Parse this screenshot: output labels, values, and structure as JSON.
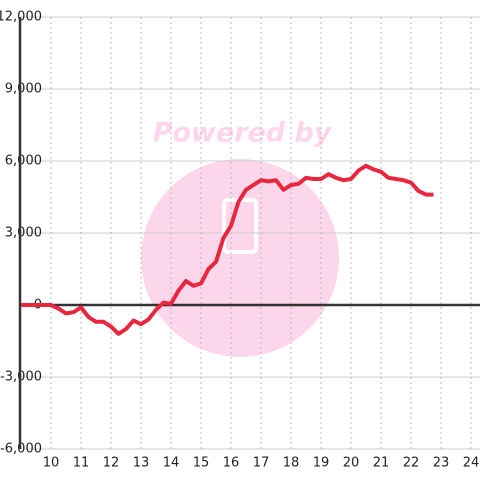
{
  "chart_data": {
    "type": "line",
    "watermark": "Powered by",
    "x": [
      9,
      10,
      10.25,
      10.5,
      10.75,
      11,
      11.25,
      11.5,
      11.75,
      12,
      12.25,
      12.5,
      12.75,
      13,
      13.25,
      13.5,
      13.75,
      14,
      14.25,
      14.5,
      14.75,
      15,
      15.25,
      15.5,
      15.75,
      16,
      16.25,
      16.5,
      16.75,
      17,
      17.25,
      17.5,
      17.75,
      18,
      18.25,
      18.5,
      18.75,
      19,
      19.25,
      19.5,
      19.75,
      20,
      20.25,
      20.5,
      20.75,
      21,
      21.25,
      21.5,
      21.75,
      22,
      22.25,
      22.5,
      22.75
    ],
    "series": [
      {
        "color": "#e8273f",
        "values": [
          0,
          0,
          -150,
          -350,
          -300,
          -100,
          -500,
          -700,
          -700,
          -900,
          -1200,
          -1000,
          -650,
          -800,
          -600,
          -200,
          100,
          50,
          600,
          1000,
          800,
          900,
          1500,
          1800,
          2800,
          3300,
          4300,
          4800,
          5000,
          5200,
          5150,
          5200,
          4800,
          5000,
          5050,
          5300,
          5250,
          5250,
          5450,
          5300,
          5200,
          5250,
          5600,
          5800,
          5650,
          5550,
          5300,
          5250,
          5200,
          5100,
          4750,
          4600,
          4600
        ]
      }
    ],
    "xlim": [
      9,
      24.3
    ],
    "xticks": [
      10,
      11,
      12,
      13,
      14,
      15,
      16,
      17,
      18,
      19,
      20,
      21,
      22,
      23,
      24
    ],
    "ylim": [
      -6000,
      12000
    ],
    "yticks": [
      {
        "value": -6000,
        "label": "-6,000"
      },
      {
        "value": -3000,
        "label": "-3,000"
      },
      0,
      {
        "value": 3000,
        "label": "3,000"
      },
      {
        "value": 6000,
        "label": "6,000"
      },
      {
        "value": 9000,
        "label": "9,000"
      },
      {
        "value": 12000,
        "label": "12,000"
      }
    ],
    "grid": true
  }
}
